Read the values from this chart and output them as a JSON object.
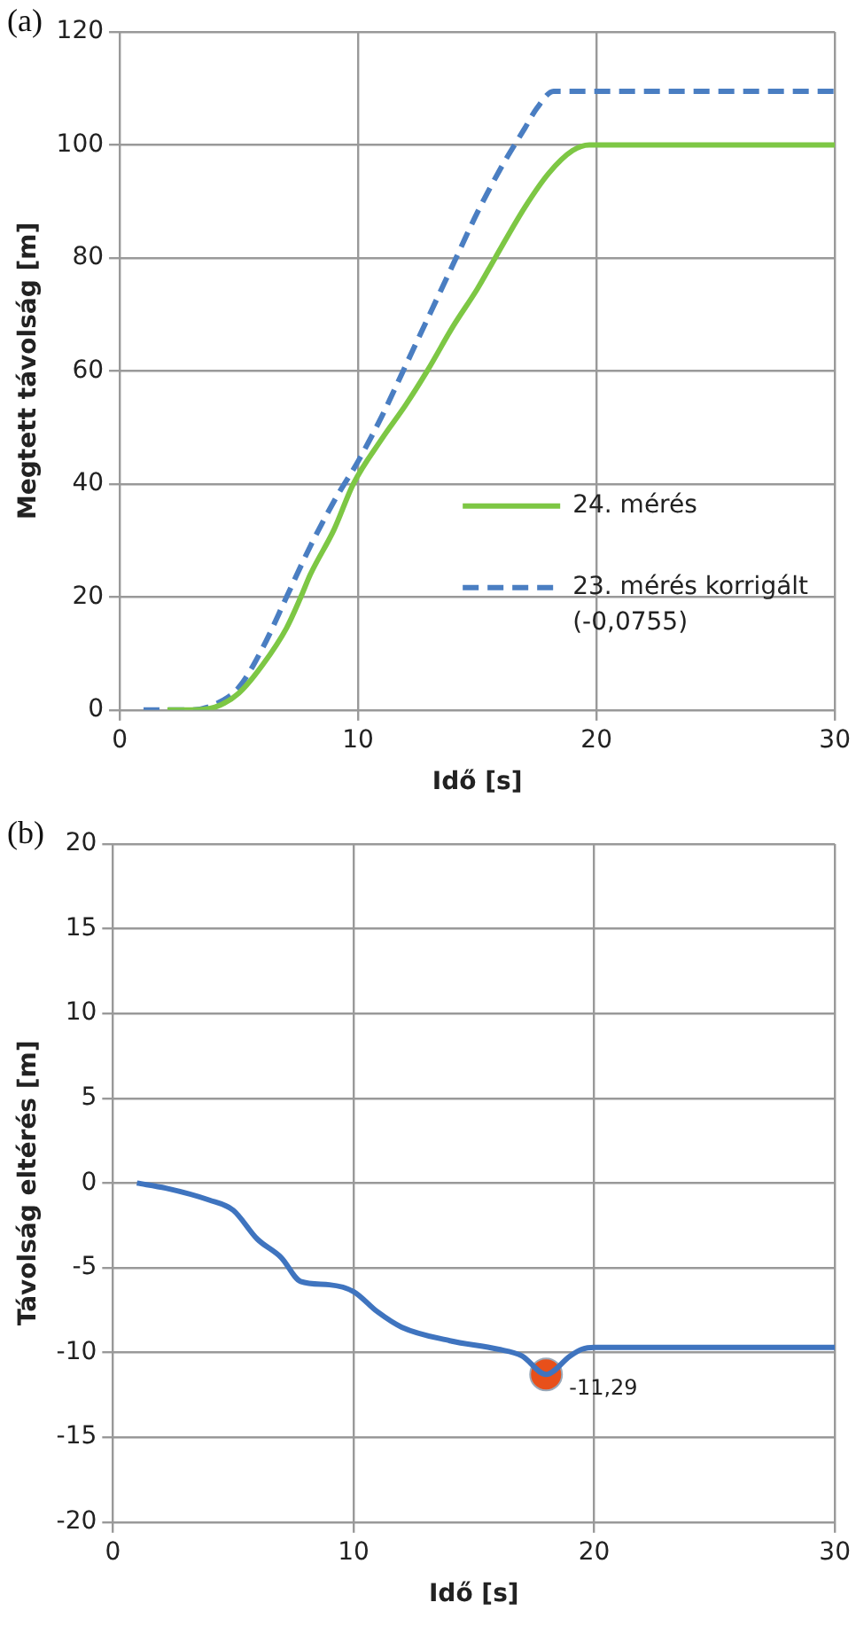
{
  "chart_data": [
    {
      "type": "line",
      "title": "(a)",
      "xlabel": "Idő [s]",
      "ylabel": "Megtett távolság [m]",
      "xlim": [
        0,
        30
      ],
      "xticks": [
        0,
        10,
        20,
        30
      ],
      "ylim": [
        0,
        120
      ],
      "yticks": [
        0,
        20,
        40,
        60,
        80,
        100,
        120
      ],
      "grid": true,
      "legend": "bottom right",
      "marker": "none",
      "series": [
        {
          "name": "24. mérés",
          "color": "#7dc744",
          "line_style": "solid",
          "x": [
            2,
            3,
            4,
            5,
            6,
            7,
            7.6,
            8,
            9,
            9.8,
            11,
            12,
            12.9,
            14,
            15,
            15.75,
            17,
            18,
            19,
            19.7,
            20,
            30
          ],
          "values": [
            0,
            0,
            0.5,
            3,
            8,
            14.5,
            20,
            24,
            32,
            40,
            48,
            54,
            60,
            68,
            74.5,
            80,
            89,
            95,
            99,
            100,
            100,
            100
          ]
        },
        {
          "name": "23. mérés korrigált (-0,0755)",
          "color": "#4a7ec2",
          "line_style": "dashed",
          "x": [
            1,
            3,
            4,
            5,
            6,
            7,
            8,
            9,
            10,
            11,
            12,
            13,
            14,
            15,
            16,
            17,
            17.5,
            18.2,
            30
          ],
          "values": [
            0,
            0,
            1,
            4,
            11,
            20,
            29,
            37,
            44,
            52,
            61,
            70,
            79,
            88,
            96,
            103,
            106.5,
            109.5,
            109.5
          ]
        }
      ]
    },
    {
      "type": "line",
      "title": "(b)",
      "xlabel": "Idő [s]",
      "ylabel": "Távolság eltérés [m]",
      "xlim": [
        0,
        30
      ],
      "xticks": [
        0,
        10,
        20,
        30
      ],
      "ylim": [
        -20,
        20
      ],
      "yticks": [
        -20,
        -15,
        -10,
        -5,
        0,
        5,
        10,
        15,
        20
      ],
      "grid": true,
      "marker": "none",
      "annotations": [
        {
          "text": "-11,29",
          "x": 18,
          "y": -11.29
        }
      ],
      "series": [
        {
          "color": "#3f74bf",
          "line_style": "solid",
          "x": [
            1,
            2.2,
            4,
            5,
            6,
            7,
            7.8,
            9,
            10,
            11,
            12,
            14,
            16,
            17,
            18,
            19,
            19.5,
            20,
            30
          ],
          "values": [
            0,
            -0.3,
            -1,
            -1.6,
            -3.3,
            -4.4,
            -5.8,
            -6,
            -6.4,
            -7.6,
            -8.5,
            -9.3,
            -9.8,
            -10.2,
            -11.29,
            -10.2,
            -9.8,
            -9.7,
            -9.7
          ]
        },
        {
          "type": "scatter",
          "marker": "circle",
          "color": "#e8501a",
          "x": [
            18
          ],
          "values": [
            -11.29
          ]
        }
      ]
    }
  ]
}
